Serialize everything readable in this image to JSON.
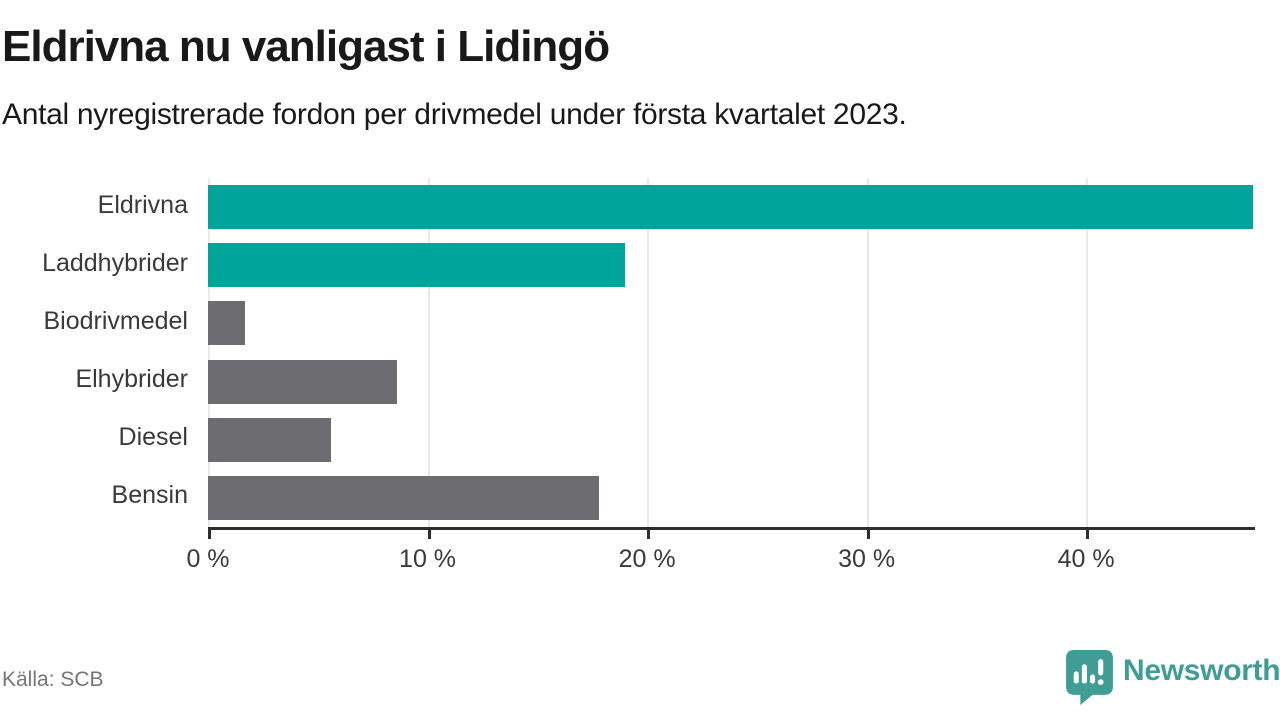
{
  "header": {
    "title": "Eldrivna nu vanligast i Lidingö",
    "subtitle": "Antal nyregistrerade fordon per drivmedel under första kvartalet 2023."
  },
  "chart_data": {
    "type": "bar",
    "orientation": "horizontal",
    "title": "Eldrivna nu vanligast i Lidingö",
    "subtitle": "Antal nyregistrerade fordon per drivmedel under första kvartalet 2023.",
    "categories": [
      "Eldrivna",
      "Laddhybrider",
      "Biodrivmedel",
      "Elhybrider",
      "Diesel",
      "Bensin"
    ],
    "values": [
      47.6,
      19.0,
      1.7,
      8.6,
      5.6,
      17.8
    ],
    "unit": "%",
    "bar_colors": [
      "#00a49a",
      "#00a49a",
      "#6c6c71",
      "#6c6c71",
      "#6c6c71",
      "#6c6c71"
    ],
    "xlabel": "",
    "ylabel": "",
    "xlim": [
      0,
      47.6
    ],
    "xticks": [
      0,
      10,
      20,
      30,
      40
    ],
    "xtick_labels": [
      "0 %",
      "10 %",
      "20 %",
      "30 %",
      "40 %"
    ],
    "grid": "vertical-only",
    "legend": false
  },
  "colors": {
    "accent_teal": "#00a49a",
    "neutral_gray": "#6c6c71",
    "axis": "#2e2e2e",
    "gridline": "#e9e9e9",
    "text": "#191919",
    "muted_text": "#75757a",
    "brand_teal": "#3f9d95"
  },
  "footer": {
    "source": "Källa: SCB",
    "brand": "Newsworthy"
  }
}
